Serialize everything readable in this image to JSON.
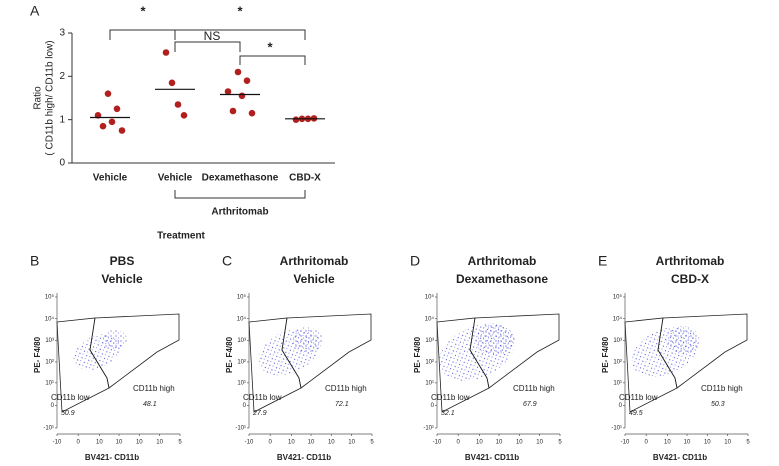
{
  "chart_data": [
    {
      "type": "scatter",
      "panel": "A",
      "ylabel": [
        "Ratio",
        "( CD11b high/ CD11b low)"
      ],
      "xlabel": "Treatment",
      "categories": [
        "Vehicle",
        "Vehicle",
        "Dexamethasone",
        "CBD-X"
      ],
      "points": [
        [
          1.6,
          1.25,
          1.1,
          0.95,
          0.85,
          0.75
        ],
        [
          2.55,
          1.85,
          1.35,
          1.1
        ],
        [
          2.1,
          1.9,
          1.65,
          1.55,
          1.2,
          1.15
        ],
        [
          1.0,
          1.02,
          1.02,
          1.03
        ]
      ],
      "means": [
        1.05,
        1.7,
        1.58,
        1.02
      ],
      "color": "#b0201e",
      "ylim": [
        0,
        3
      ],
      "yticks": [
        0,
        1,
        2,
        3
      ],
      "group_label": "Arthritomab",
      "annotations": [
        "*",
        "NS",
        "*",
        "*"
      ]
    }
  ],
  "flow": {
    "xlabel": "BV421- CD11b",
    "ylabel": "PE- F4/80",
    "xlim": [
      -10,
      100000
    ],
    "ylim": [
      -10,
      100000
    ],
    "xticks": [
      {
        "value": -10,
        "label": "-10"
      },
      0,
      {
        "value": 10,
        "label": "10"
      },
      {
        "value": 100,
        "label": "10"
      },
      {
        "value": 1000,
        "label": "10"
      },
      {
        "value": 10000,
        "label": "10"
      },
      {
        "value": 100000,
        "label": "5"
      }
    ],
    "yticks": [
      {
        "value": -10,
        "label": "-10¹"
      },
      0,
      {
        "value": 10,
        "label": "10¹"
      },
      {
        "value": 100,
        "label": "10²"
      },
      {
        "value": 1000,
        "label": "10³"
      },
      {
        "value": 10000,
        "label": "10⁴"
      },
      {
        "value": 100000,
        "label": "10⁵"
      }
    ],
    "panels": [
      {
        "letter": "B",
        "title": [
          "PBS",
          "Vehicle"
        ],
        "gates": [
          {
            "name": "CD11b low",
            "value": 50.9
          },
          {
            "name": "CD11b high",
            "value": 48.1
          }
        ]
      },
      {
        "letter": "C",
        "title": [
          "Arthritomab",
          "Vehicle"
        ],
        "gates": [
          {
            "name": "CD11b low",
            "value": 27.9
          },
          {
            "name": "CD11b high",
            "value": 72.1
          }
        ]
      },
      {
        "letter": "D",
        "title": [
          "Arthritomab",
          "Dexamethasone"
        ],
        "gates": [
          {
            "name": "CD11b low",
            "value": 32.1
          },
          {
            "name": "CD11b high",
            "value": 67.9
          }
        ]
      },
      {
        "letter": "E",
        "title": [
          "Arthritomab",
          "CBD-X"
        ],
        "gates": [
          {
            "name": "CD11b low",
            "value": 49.5
          },
          {
            "name": "CD11b high",
            "value": 50.3
          }
        ]
      }
    ]
  }
}
